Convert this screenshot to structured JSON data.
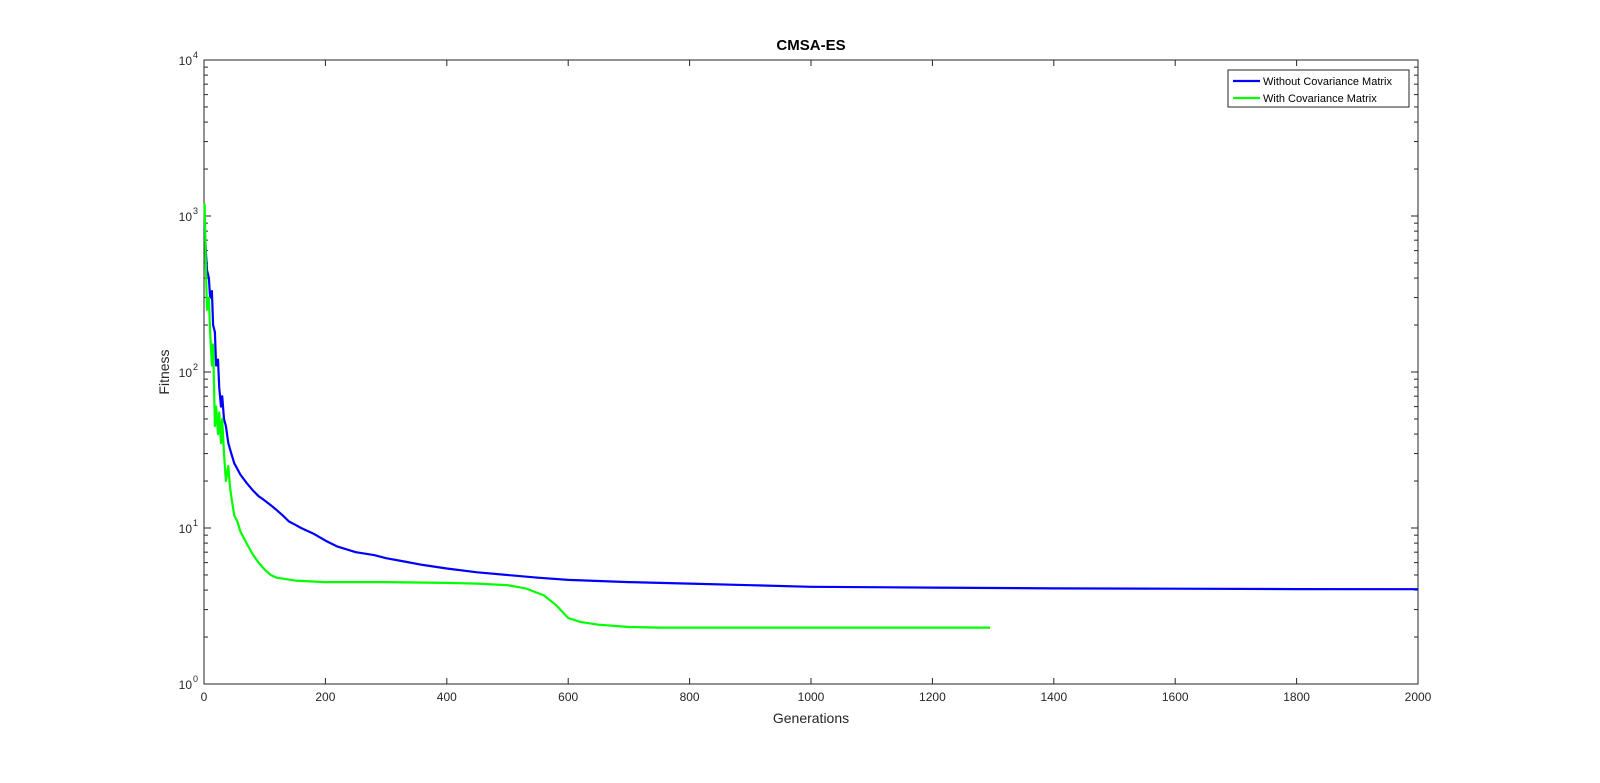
{
  "chart_data": {
    "type": "line",
    "title": "CMSA-ES",
    "xlabel": "Generations",
    "ylabel": "Fitness",
    "xlim": [
      0,
      2000
    ],
    "ylim": [
      1,
      10000
    ],
    "yscale": "log",
    "grid": false,
    "legend_position": "top-right",
    "x_ticks": [
      "0",
      "200",
      "400",
      "600",
      "800",
      "1000",
      "1200",
      "1400",
      "1600",
      "1800",
      "2000"
    ],
    "y_ticks": [
      {
        "base": "10",
        "exp": "0"
      },
      {
        "base": "10",
        "exp": "1"
      },
      {
        "base": "10",
        "exp": "2"
      },
      {
        "base": "10",
        "exp": "3"
      },
      {
        "base": "10",
        "exp": "4"
      }
    ],
    "series": [
      {
        "name": "Without Covariance Matrix",
        "color": "#0000ff",
        "x": [
          1,
          3,
          5,
          8,
          10,
          13,
          15,
          18,
          20,
          23,
          25,
          28,
          30,
          33,
          36,
          40,
          45,
          50,
          60,
          70,
          80,
          90,
          100,
          110,
          120,
          130,
          140,
          150,
          160,
          180,
          200,
          220,
          250,
          280,
          300,
          330,
          360,
          400,
          450,
          500,
          550,
          600,
          700,
          800,
          900,
          1000,
          1200,
          1400,
          1600,
          1800,
          2000
        ],
        "y": [
          900,
          600,
          450,
          400,
          300,
          330,
          200,
          180,
          110,
          120,
          80,
          60,
          70,
          50,
          45,
          35,
          30,
          26,
          22,
          19.5,
          17.5,
          16,
          15,
          14,
          13,
          12,
          11,
          10.5,
          10,
          9.2,
          8.3,
          7.6,
          7.0,
          6.7,
          6.4,
          6.1,
          5.8,
          5.5,
          5.2,
          5.0,
          4.8,
          4.65,
          4.5,
          4.4,
          4.3,
          4.2,
          4.15,
          4.1,
          4.08,
          4.06,
          4.05
        ]
      },
      {
        "name": "With Covariance Matrix",
        "color": "#00ff00",
        "x": [
          1,
          3,
          5,
          8,
          10,
          13,
          15,
          18,
          20,
          23,
          25,
          28,
          30,
          33,
          36,
          40,
          43,
          46,
          50,
          55,
          60,
          70,
          80,
          90,
          100,
          110,
          120,
          150,
          200,
          300,
          400,
          450,
          500,
          530,
          560,
          580,
          600,
          620,
          650,
          700,
          750,
          800,
          1000,
          1200,
          1295
        ],
        "y": [
          1200,
          500,
          250,
          300,
          180,
          110,
          150,
          45,
          60,
          40,
          55,
          35,
          50,
          30,
          20,
          25,
          18,
          15,
          12,
          11,
          9.5,
          8,
          6.8,
          6,
          5.4,
          5.0,
          4.8,
          4.6,
          4.5,
          4.5,
          4.45,
          4.4,
          4.3,
          4.1,
          3.7,
          3.2,
          2.65,
          2.5,
          2.4,
          2.32,
          2.3,
          2.3,
          2.3,
          2.3,
          2.3
        ]
      }
    ]
  }
}
